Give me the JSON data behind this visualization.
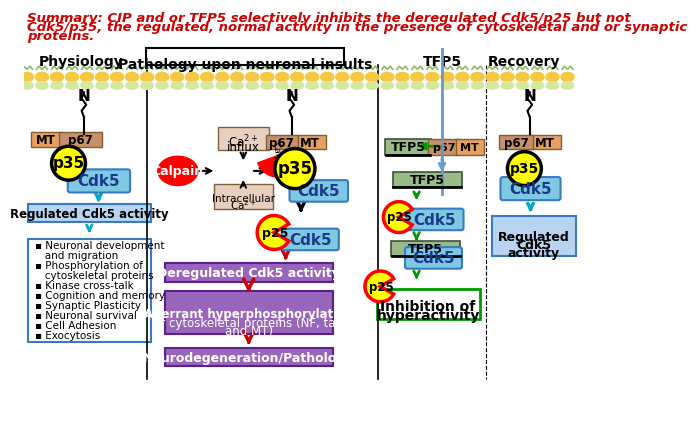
{
  "title_line1": "Summary: CIP and or TFP5 selectively inhibits the deregulated Cdk5/p25 but not",
  "title_line2": "Cdk5/p35, the regulated, normal activity in the presence of cytoskeletal and or synaptic",
  "title_line3": "proteins.",
  "title_color": "#cc0000",
  "bg_color": "#ffffff",
  "membrane_outer_color": "#f5c842",
  "membrane_inner_color": "#c8e6a0",
  "cyan_box_color": "#7ec8e3",
  "cyan_box_edge": "#3a7abf",
  "light_blue_box": "#b8d4f0",
  "green_box_color": "#99bb88",
  "purple_box_color": "#9966bb",
  "yellow_color": "#ffff00",
  "red_color": "#ff0000",
  "orange_color": "#e8a060",
  "brown_color": "#c8906a",
  "pink_box_color": "#e8d0c0",
  "dark_red_arrow": "#cc0000",
  "green_arrow": "#009900",
  "cyan_arrow": "#00aacc",
  "blue_line": "#6699cc"
}
